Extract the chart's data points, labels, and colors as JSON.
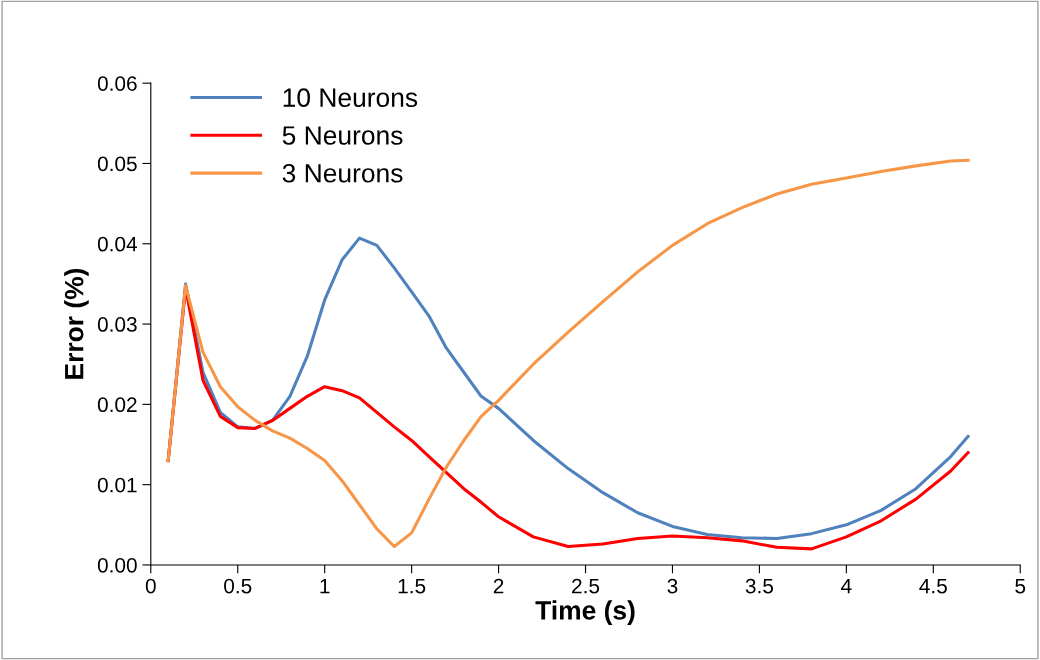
{
  "chart_data": {
    "type": "line",
    "xlabel": "Time (s)",
    "ylabel": "Error (%)",
    "x": [
      0.1,
      0.2,
      0.3,
      0.4,
      0.5,
      0.6,
      0.7,
      0.8,
      0.9,
      1.0,
      1.1,
      1.2,
      1.3,
      1.4,
      1.5,
      1.6,
      1.7,
      1.8,
      1.9,
      2.0,
      2.2,
      2.4,
      2.6,
      2.8,
      3.0,
      3.2,
      3.4,
      3.6,
      3.8,
      4.0,
      4.2,
      4.4,
      4.6,
      4.7
    ],
    "series": [
      {
        "name": "10 Neurons",
        "color": "#4f81bd",
        "values": [
          0.013,
          0.035,
          0.024,
          0.019,
          0.0172,
          0.017,
          0.018,
          0.021,
          0.026,
          0.033,
          0.038,
          0.0407,
          0.0398,
          0.037,
          0.034,
          0.031,
          0.027,
          0.024,
          0.021,
          0.0195,
          0.0155,
          0.012,
          0.009,
          0.0065,
          0.0048,
          0.0038,
          0.0034,
          0.0033,
          0.0039,
          0.005,
          0.0068,
          0.0095,
          0.0135,
          0.016
        ]
      },
      {
        "name": "5 Neurons",
        "color": "#ff0000",
        "values": [
          0.013,
          0.0345,
          0.023,
          0.0185,
          0.0171,
          0.017,
          0.018,
          0.0195,
          0.021,
          0.0222,
          0.0217,
          0.0208,
          0.019,
          0.0172,
          0.0155,
          0.0135,
          0.0115,
          0.0095,
          0.0078,
          0.006,
          0.0035,
          0.0023,
          0.0026,
          0.0033,
          0.0036,
          0.0034,
          0.003,
          0.0022,
          0.002,
          0.0035,
          0.0055,
          0.0082,
          0.0117,
          0.014
        ]
      },
      {
        "name": "3 Neurons",
        "color": "#f79646",
        "values": [
          0.013,
          0.0348,
          0.0265,
          0.0222,
          0.0197,
          0.018,
          0.0167,
          0.0158,
          0.0145,
          0.013,
          0.0105,
          0.0075,
          0.0045,
          0.0023,
          0.004,
          0.0082,
          0.0122,
          0.0155,
          0.0185,
          0.0205,
          0.025,
          0.029,
          0.0328,
          0.0365,
          0.0398,
          0.0425,
          0.0445,
          0.0462,
          0.0474,
          0.0482,
          0.049,
          0.0497,
          0.0503,
          0.0504
        ]
      }
    ],
    "xlim": [
      0,
      5
    ],
    "xticks": [
      0,
      0.5,
      1,
      1.5,
      2,
      2.5,
      3,
      3.5,
      4,
      4.5,
      5
    ],
    "ylim": [
      0,
      0.06
    ],
    "yticks": [
      {
        "value": 0,
        "label": "0.00"
      },
      0.01,
      0.02,
      0.03,
      0.04,
      0.05,
      0.06
    ],
    "legend": "top left",
    "grid": false,
    "marker": "none",
    "line_style": "solid"
  }
}
